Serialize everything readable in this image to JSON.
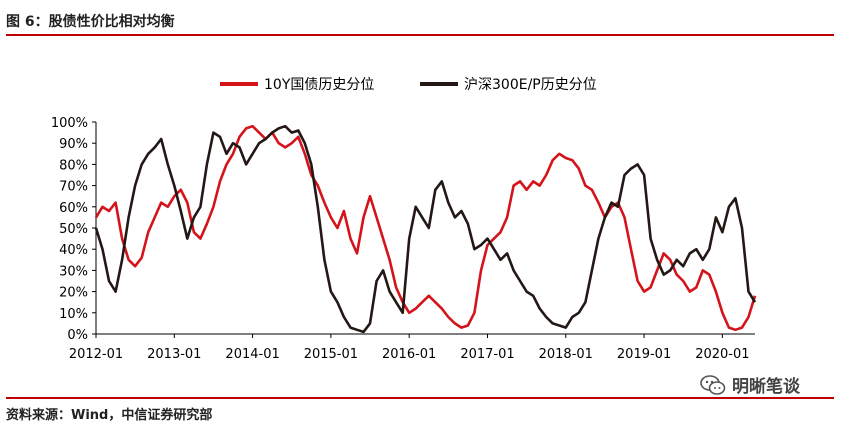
{
  "figure_title": "图 6：股债性价比相对均衡",
  "source_note": "资料来源：Wind，中信证券研究部",
  "watermark": {
    "text": "明晰笔谈",
    "icon": "wechat-icon"
  },
  "colors": {
    "rule": "#c00000",
    "series_bond": "#d4131a",
    "series_stock": "#231815"
  },
  "chart_data": {
    "type": "line",
    "title": "",
    "xlabel": "",
    "ylabel": "",
    "x_ticks": [
      "2012-01",
      "2013-01",
      "2014-01",
      "2015-01",
      "2016-01",
      "2017-01",
      "2018-01",
      "2019-01",
      "2020-01"
    ],
    "y_ticks": [
      "0%",
      "10%",
      "20%",
      "30%",
      "40%",
      "50%",
      "60%",
      "70%",
      "80%",
      "90%",
      "100%"
    ],
    "ylim": [
      0,
      1
    ],
    "xlim": [
      "2012-01",
      "2020-06"
    ],
    "grid": false,
    "legend_position": "top",
    "series": [
      {
        "name": "10Y国债历史分位",
        "color": "#d4131a",
        "points": [
          [
            "2012-01",
            0.55
          ],
          [
            "2012-02",
            0.6
          ],
          [
            "2012-03",
            0.58
          ],
          [
            "2012-04",
            0.62
          ],
          [
            "2012-05",
            0.45
          ],
          [
            "2012-06",
            0.35
          ],
          [
            "2012-07",
            0.32
          ],
          [
            "2012-08",
            0.36
          ],
          [
            "2012-09",
            0.48
          ],
          [
            "2012-10",
            0.55
          ],
          [
            "2012-11",
            0.62
          ],
          [
            "2012-12",
            0.6
          ],
          [
            "2013-01",
            0.65
          ],
          [
            "2013-02",
            0.68
          ],
          [
            "2013-03",
            0.62
          ],
          [
            "2013-04",
            0.48
          ],
          [
            "2013-05",
            0.45
          ],
          [
            "2013-06",
            0.52
          ],
          [
            "2013-07",
            0.6
          ],
          [
            "2013-08",
            0.72
          ],
          [
            "2013-09",
            0.8
          ],
          [
            "2013-10",
            0.85
          ],
          [
            "2013-11",
            0.93
          ],
          [
            "2013-12",
            0.97
          ],
          [
            "2014-01",
            0.98
          ],
          [
            "2014-02",
            0.95
          ],
          [
            "2014-03",
            0.92
          ],
          [
            "2014-04",
            0.95
          ],
          [
            "2014-05",
            0.9
          ],
          [
            "2014-06",
            0.88
          ],
          [
            "2014-07",
            0.9
          ],
          [
            "2014-08",
            0.93
          ],
          [
            "2014-09",
            0.85
          ],
          [
            "2014-10",
            0.75
          ],
          [
            "2014-11",
            0.7
          ],
          [
            "2014-12",
            0.62
          ],
          [
            "2015-01",
            0.55
          ],
          [
            "2015-02",
            0.5
          ],
          [
            "2015-03",
            0.58
          ],
          [
            "2015-04",
            0.45
          ],
          [
            "2015-05",
            0.38
          ],
          [
            "2015-06",
            0.55
          ],
          [
            "2015-07",
            0.65
          ],
          [
            "2015-08",
            0.55
          ],
          [
            "2015-09",
            0.45
          ],
          [
            "2015-10",
            0.35
          ],
          [
            "2015-11",
            0.22
          ],
          [
            "2015-12",
            0.15
          ],
          [
            "2016-01",
            0.1
          ],
          [
            "2016-02",
            0.12
          ],
          [
            "2016-03",
            0.15
          ],
          [
            "2016-04",
            0.18
          ],
          [
            "2016-05",
            0.15
          ],
          [
            "2016-06",
            0.12
          ],
          [
            "2016-07",
            0.08
          ],
          [
            "2016-08",
            0.05
          ],
          [
            "2016-09",
            0.03
          ],
          [
            "2016-10",
            0.04
          ],
          [
            "2016-11",
            0.1
          ],
          [
            "2016-12",
            0.3
          ],
          [
            "2017-01",
            0.42
          ],
          [
            "2017-02",
            0.45
          ],
          [
            "2017-03",
            0.48
          ],
          [
            "2017-04",
            0.55
          ],
          [
            "2017-05",
            0.7
          ],
          [
            "2017-06",
            0.72
          ],
          [
            "2017-07",
            0.68
          ],
          [
            "2017-08",
            0.72
          ],
          [
            "2017-09",
            0.7
          ],
          [
            "2017-10",
            0.75
          ],
          [
            "2017-11",
            0.82
          ],
          [
            "2017-12",
            0.85
          ],
          [
            "2018-01",
            0.83
          ],
          [
            "2018-02",
            0.82
          ],
          [
            "2018-03",
            0.78
          ],
          [
            "2018-04",
            0.7
          ],
          [
            "2018-05",
            0.68
          ],
          [
            "2018-06",
            0.62
          ],
          [
            "2018-07",
            0.55
          ],
          [
            "2018-08",
            0.6
          ],
          [
            "2018-09",
            0.62
          ],
          [
            "2018-10",
            0.55
          ],
          [
            "2018-11",
            0.4
          ],
          [
            "2018-12",
            0.25
          ],
          [
            "2019-01",
            0.2
          ],
          [
            "2019-02",
            0.22
          ],
          [
            "2019-03",
            0.3
          ],
          [
            "2019-04",
            0.38
          ],
          [
            "2019-05",
            0.35
          ],
          [
            "2019-06",
            0.28
          ],
          [
            "2019-07",
            0.25
          ],
          [
            "2019-08",
            0.2
          ],
          [
            "2019-09",
            0.22
          ],
          [
            "2019-10",
            0.3
          ],
          [
            "2019-11",
            0.28
          ],
          [
            "2019-12",
            0.2
          ],
          [
            "2020-01",
            0.1
          ],
          [
            "2020-02",
            0.03
          ],
          [
            "2020-03",
            0.02
          ],
          [
            "2020-04",
            0.03
          ],
          [
            "2020-05",
            0.08
          ],
          [
            "2020-06",
            0.18
          ]
        ]
      },
      {
        "name": "沪深300E/P历史分位",
        "color": "#231815",
        "points": [
          [
            "2012-01",
            0.5
          ],
          [
            "2012-02",
            0.4
          ],
          [
            "2012-03",
            0.25
          ],
          [
            "2012-04",
            0.2
          ],
          [
            "2012-05",
            0.35
          ],
          [
            "2012-06",
            0.55
          ],
          [
            "2012-07",
            0.7
          ],
          [
            "2012-08",
            0.8
          ],
          [
            "2012-09",
            0.85
          ],
          [
            "2012-10",
            0.88
          ],
          [
            "2012-11",
            0.92
          ],
          [
            "2012-12",
            0.8
          ],
          [
            "2013-01",
            0.7
          ],
          [
            "2013-02",
            0.58
          ],
          [
            "2013-03",
            0.45
          ],
          [
            "2013-04",
            0.55
          ],
          [
            "2013-05",
            0.6
          ],
          [
            "2013-06",
            0.8
          ],
          [
            "2013-07",
            0.95
          ],
          [
            "2013-08",
            0.93
          ],
          [
            "2013-09",
            0.85
          ],
          [
            "2013-10",
            0.9
          ],
          [
            "2013-11",
            0.88
          ],
          [
            "2013-12",
            0.8
          ],
          [
            "2014-01",
            0.85
          ],
          [
            "2014-02",
            0.9
          ],
          [
            "2014-03",
            0.92
          ],
          [
            "2014-04",
            0.95
          ],
          [
            "2014-05",
            0.97
          ],
          [
            "2014-06",
            0.98
          ],
          [
            "2014-07",
            0.95
          ],
          [
            "2014-08",
            0.96
          ],
          [
            "2014-09",
            0.9
          ],
          [
            "2014-10",
            0.8
          ],
          [
            "2014-11",
            0.6
          ],
          [
            "2014-12",
            0.35
          ],
          [
            "2015-01",
            0.2
          ],
          [
            "2015-02",
            0.15
          ],
          [
            "2015-03",
            0.08
          ],
          [
            "2015-04",
            0.03
          ],
          [
            "2015-05",
            0.02
          ],
          [
            "2015-06",
            0.01
          ],
          [
            "2015-07",
            0.05
          ],
          [
            "2015-08",
            0.25
          ],
          [
            "2015-09",
            0.3
          ],
          [
            "2015-10",
            0.2
          ],
          [
            "2015-11",
            0.15
          ],
          [
            "2015-12",
            0.1
          ],
          [
            "2016-01",
            0.45
          ],
          [
            "2016-02",
            0.6
          ],
          [
            "2016-03",
            0.55
          ],
          [
            "2016-04",
            0.5
          ],
          [
            "2016-05",
            0.68
          ],
          [
            "2016-06",
            0.72
          ],
          [
            "2016-07",
            0.62
          ],
          [
            "2016-08",
            0.55
          ],
          [
            "2016-09",
            0.58
          ],
          [
            "2016-10",
            0.52
          ],
          [
            "2016-11",
            0.4
          ],
          [
            "2016-12",
            0.42
          ],
          [
            "2017-01",
            0.45
          ],
          [
            "2017-02",
            0.4
          ],
          [
            "2017-03",
            0.35
          ],
          [
            "2017-04",
            0.38
          ],
          [
            "2017-05",
            0.3
          ],
          [
            "2017-06",
            0.25
          ],
          [
            "2017-07",
            0.2
          ],
          [
            "2017-08",
            0.18
          ],
          [
            "2017-09",
            0.12
          ],
          [
            "2017-10",
            0.08
          ],
          [
            "2017-11",
            0.05
          ],
          [
            "2017-12",
            0.04
          ],
          [
            "2018-01",
            0.03
          ],
          [
            "2018-02",
            0.08
          ],
          [
            "2018-03",
            0.1
          ],
          [
            "2018-04",
            0.15
          ],
          [
            "2018-05",
            0.3
          ],
          [
            "2018-06",
            0.45
          ],
          [
            "2018-07",
            0.55
          ],
          [
            "2018-08",
            0.62
          ],
          [
            "2018-09",
            0.6
          ],
          [
            "2018-10",
            0.75
          ],
          [
            "2018-11",
            0.78
          ],
          [
            "2018-12",
            0.8
          ],
          [
            "2019-01",
            0.75
          ],
          [
            "2019-02",
            0.45
          ],
          [
            "2019-03",
            0.35
          ],
          [
            "2019-04",
            0.28
          ],
          [
            "2019-05",
            0.3
          ],
          [
            "2019-06",
            0.35
          ],
          [
            "2019-07",
            0.32
          ],
          [
            "2019-08",
            0.38
          ],
          [
            "2019-09",
            0.4
          ],
          [
            "2019-10",
            0.35
          ],
          [
            "2019-11",
            0.4
          ],
          [
            "2019-12",
            0.55
          ],
          [
            "2020-01",
            0.48
          ],
          [
            "2020-02",
            0.6
          ],
          [
            "2020-03",
            0.64
          ],
          [
            "2020-04",
            0.5
          ],
          [
            "2020-05",
            0.2
          ],
          [
            "2020-06",
            0.15
          ]
        ]
      }
    ]
  }
}
